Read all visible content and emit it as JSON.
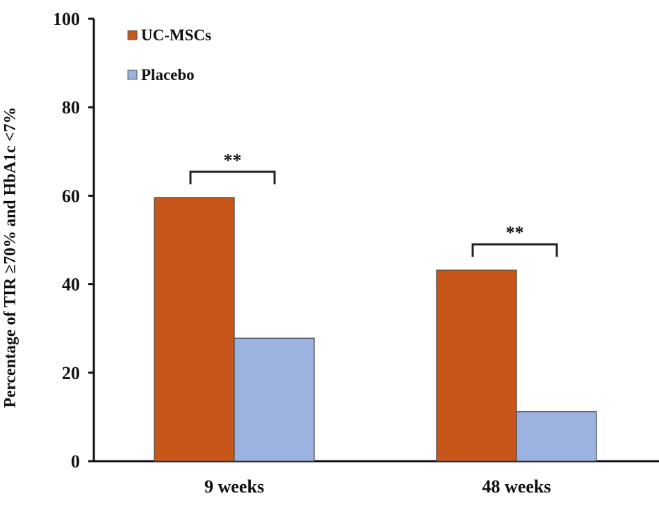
{
  "chart_data": {
    "type": "bar",
    "title": "",
    "xlabel": "",
    "ylabel": "Percentage of TIR ≥70% and HbA1c <7%",
    "ylim": [
      0,
      100
    ],
    "yticks": [
      "0",
      "20",
      "40",
      "60",
      "80",
      "100"
    ],
    "categories": [
      "9 weeks",
      "48 weeks"
    ],
    "series": [
      {
        "name": "UC-MSCs",
        "color": "#C8561A",
        "values": [
          59.6,
          43.2
        ]
      },
      {
        "name": "Placebo",
        "color": "#9DB3DF",
        "values": [
          27.8,
          11.2
        ]
      }
    ],
    "annotations": [
      "**",
      "**"
    ],
    "legend_position": "top-left",
    "grid": false
  }
}
